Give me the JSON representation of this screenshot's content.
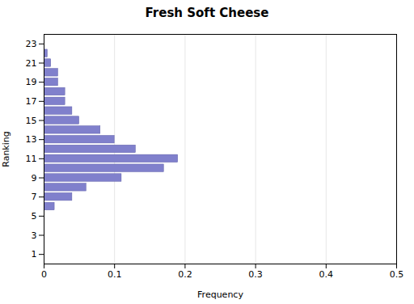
{
  "chart_data": {
    "type": "bar",
    "orientation": "horizontal",
    "title": "Fresh Soft Cheese",
    "xlabel": "Frequency",
    "ylabel": "Ranking",
    "categories": [
      1,
      2,
      3,
      4,
      5,
      6,
      7,
      8,
      9,
      10,
      11,
      12,
      13,
      14,
      15,
      16,
      17,
      18,
      19,
      20,
      21,
      22,
      23
    ],
    "values": [
      0.0,
      0.0,
      0.0,
      0.0,
      0.0,
      0.015,
      0.04,
      0.06,
      0.11,
      0.17,
      0.19,
      0.13,
      0.1,
      0.08,
      0.05,
      0.04,
      0.03,
      0.03,
      0.02,
      0.02,
      0.01,
      0.005,
      0.0
    ],
    "color": "#8080cc",
    "xlim": [
      0,
      0.5
    ],
    "xticks": [
      0,
      0.1,
      0.2,
      0.3,
      0.4,
      0.5
    ],
    "ylim": [
      0,
      24
    ],
    "yticks": [
      1,
      3,
      5,
      7,
      9,
      11,
      13,
      15,
      17,
      19,
      21,
      23
    ],
    "grid": true
  }
}
